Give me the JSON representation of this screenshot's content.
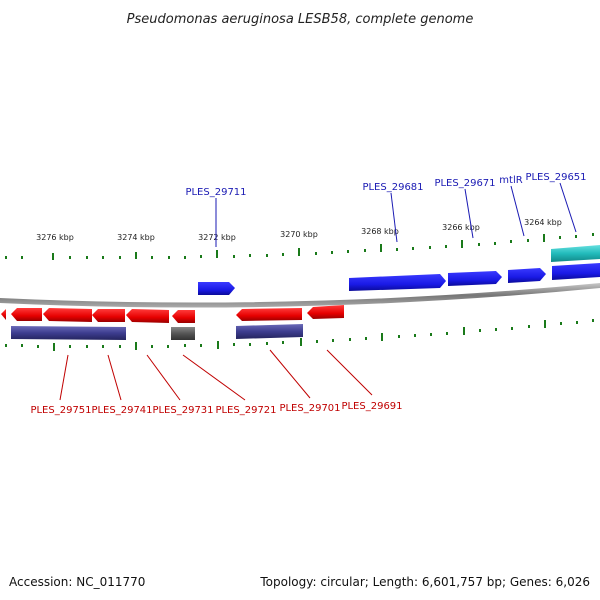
{
  "title": "Pseudomonas aeruginosa LESB58, complete genome",
  "ticks": [
    "3276 kbp",
    "3274 kbp",
    "3272 kbp",
    "3270 kbp",
    "3268 kbp",
    "3266 kbp",
    "3264 kbp"
  ],
  "labels_top": [
    "PLES_29711",
    "PLES_29681",
    "PLES_29671",
    "mtlR",
    "PLES_29651"
  ],
  "labels_bottom": [
    "PLES_29751",
    "PLES_29741",
    "PLES_29731",
    "PLES_29721",
    "PLES_29701",
    "PLES_29691"
  ],
  "footer": {
    "accession": "Accession: NC_011770",
    "summary": "Topology: circular; Length: 6,601,757 bp; Genes: 6,026"
  },
  "colors": {
    "forward_gene": "#1a1ae6",
    "reverse_gene": "#e60000",
    "forward_label": "#1a1ab3",
    "reverse_label": "#c00000",
    "track_purple": "#3d3d8f",
    "track_grey": "#555555",
    "track_teal": "#22bbbb",
    "tick_green": "#1a7a1a",
    "backbone": "#777777"
  }
}
